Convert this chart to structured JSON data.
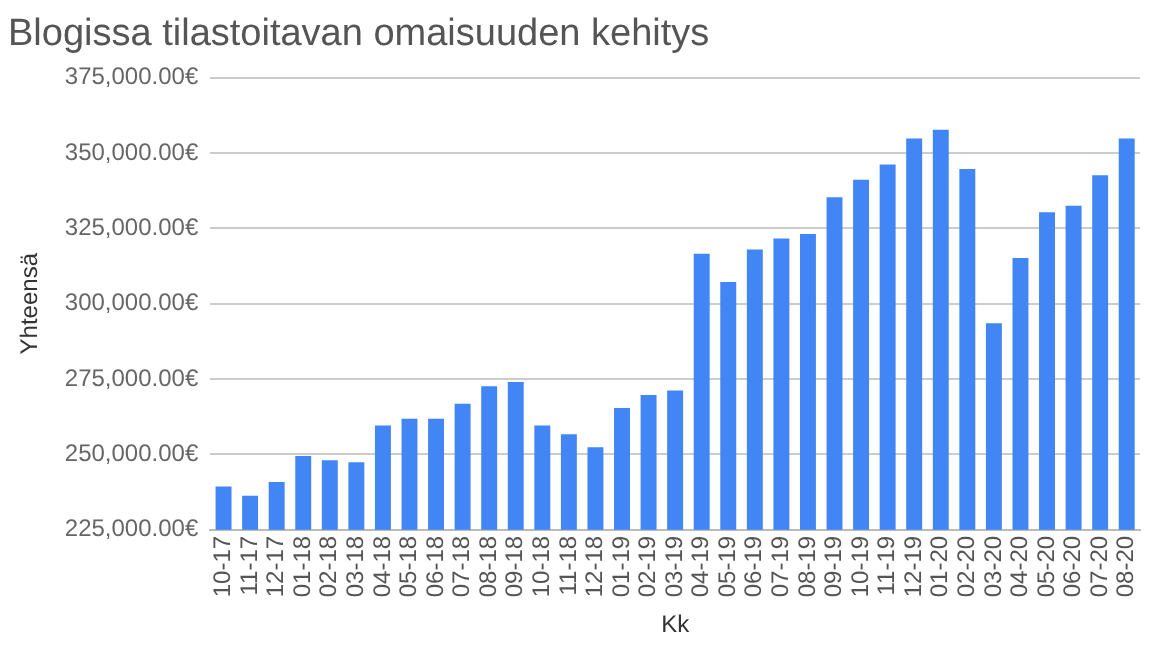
{
  "chart_data": {
    "type": "bar",
    "title": "Blogissa tilastoitavan omaisuuden kehitys",
    "xlabel": "Kk",
    "ylabel": "Yhteensä",
    "categories": [
      "10-17",
      "11-17",
      "12-17",
      "01-18",
      "02-18",
      "03-18",
      "04-18",
      "05-18",
      "06-18",
      "07-18",
      "08-18",
      "09-18",
      "10-18",
      "11-18",
      "12-18",
      "01-19",
      "02-19",
      "03-19",
      "04-19",
      "05-19",
      "06-19",
      "07-19",
      "08-19",
      "09-19",
      "10-19",
      "11-19",
      "12-19",
      "01-20",
      "02-20",
      "03-20",
      "04-20",
      "05-20",
      "06-20",
      "07-20",
      "08-20"
    ],
    "values": [
      239400,
      236300,
      240900,
      249500,
      248100,
      247400,
      259600,
      261800,
      261800,
      266800,
      272600,
      274000,
      259600,
      256700,
      252400,
      265400,
      269700,
      271200,
      316600,
      307200,
      318000,
      321600,
      323100,
      335300,
      341100,
      346200,
      354800,
      357700,
      344700,
      293500,
      315200,
      330300,
      332500,
      342600,
      354800
    ],
    "color": "#4285f4",
    "ylim": [
      225000,
      375000
    ],
    "yticks": [
      {
        "value": 225000,
        "label": "225,000.00€"
      },
      {
        "value": 250000,
        "label": "250,000.00€"
      },
      {
        "value": 275000,
        "label": "275,000.00€"
      },
      {
        "value": 300000,
        "label": "300,000.00€"
      },
      {
        "value": 325000,
        "label": "325,000.00€"
      },
      {
        "value": 350000,
        "label": "350,000.00€"
      },
      {
        "value": 375000,
        "label": "375,000.00€"
      }
    ],
    "grid": "y"
  }
}
